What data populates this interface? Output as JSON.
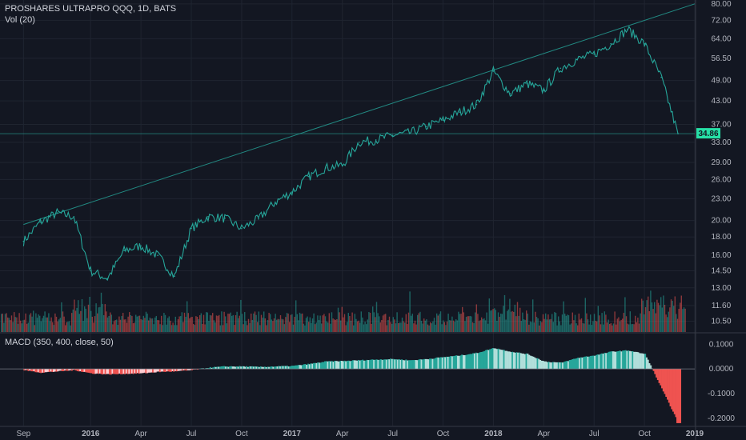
{
  "legend": {
    "symbol": "PROSHARES ULTRAPRO QQQ, 1D, BATS",
    "volume": "Vol (20)",
    "macd": "MACD (350, 400, close, 50)"
  },
  "colors": {
    "background": "#131722",
    "price_line": "#26a69a",
    "trend_line": "#26a69a",
    "vol_up": "#26a69a",
    "vol_down": "#ef5350",
    "hist_pos_strong": "#26a69a",
    "hist_pos_weak": "#b2dfdb",
    "hist_neg_strong": "#ef5350",
    "hist_neg_weak": "#ffcdd2",
    "macd_line": "#000000",
    "grid": "#1f2430",
    "tag_bg": "#26e0a6"
  },
  "chart_data": [
    {
      "type": "line",
      "title": "PROSHARES ULTRAPRO QQQ, 1D, BATS",
      "scale": "log",
      "ylim": [
        10,
        80
      ],
      "y_ticks": [
        "80.00",
        "72.00",
        "64.00",
        "56.50",
        "49.00",
        "43.00",
        "37.00",
        "33.00",
        "29.00",
        "26.00",
        "23.00",
        "20.00",
        "18.00",
        "16.00",
        "14.50",
        "13.00",
        "11.60",
        "10.50"
      ],
      "last_price": "34.86",
      "x_ticks": [
        "Sep",
        "2016",
        "Apr",
        "Jul",
        "Oct",
        "2017",
        "Apr",
        "Jul",
        "Oct",
        "2018",
        "Apr",
        "Jul",
        "Oct",
        "2019"
      ],
      "x": [
        "2015-09",
        "2015-10",
        "2015-11",
        "2015-12",
        "2016-01",
        "2016-02",
        "2016-03",
        "2016-04",
        "2016-05",
        "2016-06",
        "2016-07",
        "2016-08",
        "2016-09",
        "2016-10",
        "2016-11",
        "2016-12",
        "2017-01",
        "2017-02",
        "2017-03",
        "2017-04",
        "2017-05",
        "2017-06",
        "2017-07",
        "2017-08",
        "2017-09",
        "2017-10",
        "2017-11",
        "2017-12",
        "2018-01",
        "2018-02",
        "2018-03",
        "2018-04",
        "2018-05",
        "2018-06",
        "2018-07",
        "2018-08",
        "2018-09",
        "2018-10",
        "2018-11",
        "2018-12"
      ],
      "series": [
        {
          "name": "Price",
          "values": [
            17.5,
            19.8,
            21,
            20.5,
            14.5,
            13.8,
            16.5,
            17,
            16,
            14,
            19,
            20.5,
            20.3,
            19,
            20.2,
            22.5,
            24,
            26.5,
            28,
            28.5,
            33,
            33.5,
            34.5,
            35,
            36.5,
            38,
            40,
            42,
            52,
            45,
            48,
            46,
            53,
            56,
            58,
            62,
            68,
            62,
            50,
            34.86
          ]
        }
      ],
      "trendline": {
        "x": [
          "2015-09",
          "2018-12"
        ],
        "y": [
          19.5,
          80
        ]
      }
    },
    {
      "type": "bar",
      "title": "Vol (20)",
      "note": "Daily volume histogram, green on up days, red on down days; spikes near Jan–Feb 2016, Feb 2018 and Dec 2018."
    },
    {
      "type": "bar",
      "title": "MACD (350, 400, close, 50)",
      "y_ticks": [
        "0.1000",
        "0.0000",
        "-0.1000",
        "-0.2000"
      ],
      "ylim": [
        -0.23,
        0.14
      ],
      "x": [
        "2015-09",
        "2015-10",
        "2015-11",
        "2015-12",
        "2016-01",
        "2016-02",
        "2016-03",
        "2016-04",
        "2016-05",
        "2016-06",
        "2016-07",
        "2016-08",
        "2016-09",
        "2016-10",
        "2016-11",
        "2016-12",
        "2017-01",
        "2017-02",
        "2017-03",
        "2017-04",
        "2017-05",
        "2017-06",
        "2017-07",
        "2017-08",
        "2017-09",
        "2017-10",
        "2017-11",
        "2017-12",
        "2018-01",
        "2018-02",
        "2018-03",
        "2018-04",
        "2018-05",
        "2018-06",
        "2018-07",
        "2018-08",
        "2018-09",
        "2018-10",
        "2018-11",
        "2018-12"
      ],
      "series": [
        {
          "name": "Histogram",
          "values": [
            -0.005,
            -0.015,
            -0.01,
            -0.005,
            -0.018,
            -0.022,
            -0.02,
            -0.018,
            -0.012,
            -0.01,
            -0.005,
            0.005,
            0.01,
            0.01,
            0.008,
            0.01,
            0.012,
            0.02,
            0.03,
            0.032,
            0.035,
            0.038,
            0.04,
            0.035,
            0.04,
            0.048,
            0.055,
            0.065,
            0.085,
            0.07,
            0.06,
            0.03,
            0.025,
            0.045,
            0.055,
            0.07,
            0.075,
            0.06,
            -0.08,
            -0.22
          ]
        }
      ]
    }
  ]
}
